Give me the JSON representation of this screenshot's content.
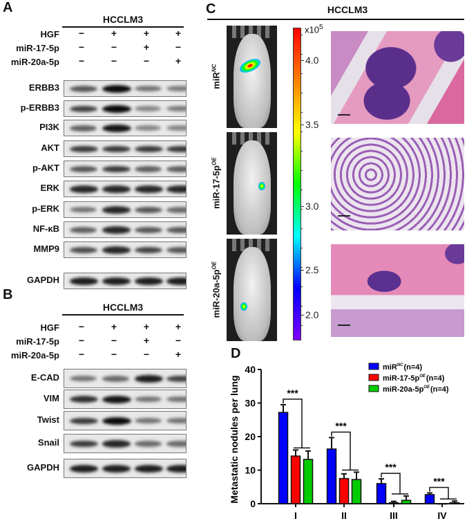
{
  "panel_a": {
    "label": "A",
    "cell_line": "HCCLM3",
    "conditions": [
      {
        "name": "HGF",
        "signs": [
          "−",
          "+",
          "+",
          "+"
        ]
      },
      {
        "name": "miR-17-5p",
        "signs": [
          "−",
          "−",
          "+",
          "−"
        ]
      },
      {
        "name": "miR-20a-5p",
        "signs": [
          "−",
          "−",
          "−",
          "+"
        ]
      }
    ],
    "blots": [
      {
        "name": "ERBB3",
        "intensity": [
          0.6,
          1.0,
          0.45,
          0.4
        ]
      },
      {
        "name": "p-ERBB3",
        "intensity": [
          0.7,
          1.0,
          0.35,
          0.4
        ]
      },
      {
        "name": "PI3K",
        "intensity": [
          0.55,
          0.95,
          0.35,
          0.35
        ]
      },
      {
        "name": "AKT",
        "intensity": [
          0.75,
          0.75,
          0.75,
          0.75
        ]
      },
      {
        "name": "p-AKT",
        "intensity": [
          0.6,
          0.75,
          0.55,
          0.55
        ]
      },
      {
        "name": "ERK",
        "intensity": [
          0.85,
          0.85,
          0.85,
          0.85
        ]
      },
      {
        "name": "p-ERK",
        "intensity": [
          0.45,
          0.85,
          0.6,
          0.5
        ]
      },
      {
        "name": "NF-κB",
        "intensity": [
          0.55,
          0.85,
          0.6,
          0.6
        ]
      },
      {
        "name": "MMP9",
        "intensity": [
          0.65,
          0.85,
          0.7,
          0.6
        ]
      },
      {
        "name": "GAPDH",
        "intensity": [
          0.9,
          0.9,
          0.9,
          0.9
        ]
      }
    ]
  },
  "panel_b": {
    "label": "B",
    "cell_line": "HCCLM3",
    "conditions": [
      {
        "name": "HGF",
        "signs": [
          "−",
          "+",
          "+",
          "+"
        ]
      },
      {
        "name": "miR-17-5p",
        "signs": [
          "−",
          "−",
          "+",
          "−"
        ]
      },
      {
        "name": "miR-20a-5p",
        "signs": [
          "−",
          "−",
          "−",
          "+"
        ]
      }
    ],
    "blots": [
      {
        "name": "E-CAD",
        "intensity": [
          0.45,
          0.5,
          0.9,
          0.7
        ]
      },
      {
        "name": "VIM",
        "intensity": [
          0.8,
          0.95,
          0.45,
          0.45
        ]
      },
      {
        "name": "Twist",
        "intensity": [
          0.75,
          1.0,
          0.45,
          0.45
        ]
      },
      {
        "name": "Snail",
        "intensity": [
          0.75,
          0.85,
          0.5,
          0.5
        ]
      },
      {
        "name": "GAPDH",
        "intensity": [
          0.9,
          0.9,
          0.9,
          0.9
        ]
      }
    ]
  },
  "panel_c": {
    "label": "C",
    "cell_line": "HCCLM3",
    "rows": [
      {
        "group": "miR",
        "sup": "NC"
      },
      {
        "group": "miR-17-5p",
        "sup": "OE"
      },
      {
        "group": "miR-20a-5p",
        "sup": "OE"
      }
    ],
    "colorbar": {
      "multiplier": "x10",
      "multiplier_exp": "5",
      "ticks": [
        "4.0",
        "3.5",
        "3.0",
        "2.5",
        "2.0"
      ],
      "colors": [
        "#ff0000",
        "#ff8000",
        "#ffff00",
        "#00ff00",
        "#00ffff",
        "#0000ff",
        "#8000ff"
      ]
    }
  },
  "panel_d": {
    "label": "D",
    "chart_data": {
      "type": "bar",
      "ylabel": "Metastatic nodules per lung",
      "xlabel": "",
      "categories": [
        "I",
        "II",
        "III",
        "IV"
      ],
      "ylim": [
        0,
        40
      ],
      "yticks": [
        "0",
        "10",
        "20",
        "30",
        "40"
      ],
      "legend_position": "top-right",
      "significance": [
        "***",
        "***",
        "***",
        "***"
      ],
      "series": [
        {
          "name": "miR",
          "sup": "NC",
          "suffix": "(n=4)",
          "color": "#0000ff",
          "values": [
            27.2,
            16.3,
            6.0,
            2.7
          ],
          "errors": [
            2.3,
            3.4,
            1.4,
            0.5
          ]
        },
        {
          "name": "miR-17-5p",
          "sup": "OE",
          "suffix": "(n=4)",
          "color": "#ff0000",
          "values": [
            14.2,
            7.5,
            0.3,
            0.0
          ],
          "errors": [
            1.8,
            1.4,
            0.4,
            0.0
          ]
        },
        {
          "name": "miR-20a-5p",
          "sup": "OE",
          "suffix": "(n=4)",
          "color": "#00cc00",
          "values": [
            13.2,
            7.2,
            1.0,
            0.3
          ],
          "errors": [
            2.5,
            2.2,
            1.3,
            0.5
          ]
        }
      ]
    }
  }
}
